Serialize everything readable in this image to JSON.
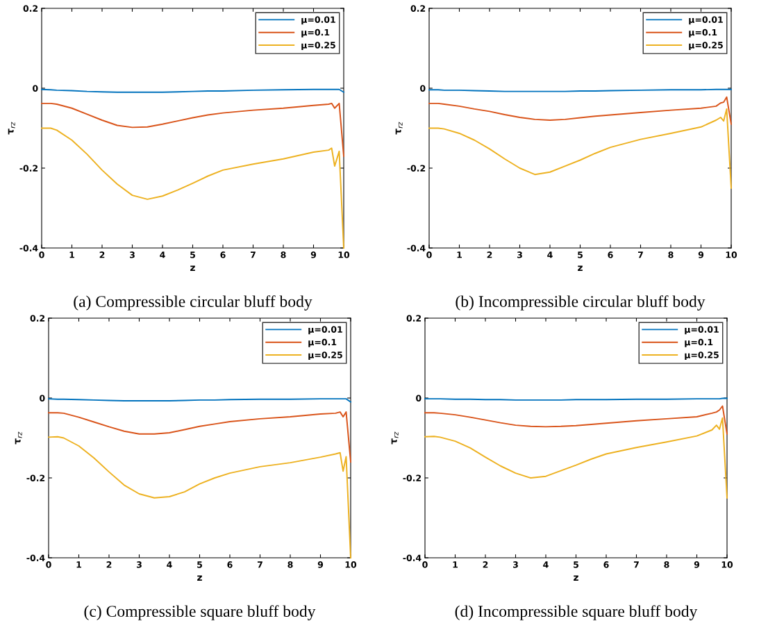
{
  "chart_data": [
    {
      "type": "line",
      "title": "(a) Compressible circular bluff body",
      "xlabel": "z",
      "ylabel": "τ$_{rz}$",
      "legend": "top right",
      "grid": false,
      "x": [
        0,
        0.3,
        0.5,
        1,
        1.5,
        2,
        2.5,
        3,
        3.5,
        4,
        4.5,
        5,
        5.5,
        6,
        7,
        8,
        9,
        9.5,
        9.6,
        9.7,
        9.85,
        10
      ],
      "xlim": [
        0,
        10
      ],
      "xticks": [
        0,
        1,
        2,
        3,
        4,
        5,
        6,
        7,
        8,
        9,
        10
      ],
      "ylim": [
        -0.4,
        0.2
      ],
      "yticks": [
        -0.4,
        -0.2,
        0,
        0.2
      ],
      "series": [
        {
          "name": "μ=0.01",
          "color": "#0072bd",
          "values": [
            -0.003,
            -0.004,
            -0.005,
            -0.006,
            -0.008,
            -0.009,
            -0.01,
            -0.01,
            -0.01,
            -0.01,
            -0.009,
            -0.008,
            -0.007,
            -0.007,
            -0.005,
            -0.004,
            -0.003,
            -0.003,
            -0.003,
            -0.003,
            -0.003,
            -0.01
          ]
        },
        {
          "name": "μ=0.1",
          "color": "#d95319",
          "values": [
            -0.038,
            -0.038,
            -0.04,
            -0.05,
            -0.065,
            -0.08,
            -0.093,
            -0.098,
            -0.097,
            -0.09,
            -0.082,
            -0.074,
            -0.067,
            -0.062,
            -0.055,
            -0.05,
            -0.043,
            -0.04,
            -0.038,
            -0.05,
            -0.038,
            -0.17
          ]
        },
        {
          "name": "μ=0.25",
          "color": "#edb120",
          "values": [
            -0.1,
            -0.1,
            -0.105,
            -0.13,
            -0.165,
            -0.205,
            -0.24,
            -0.268,
            -0.278,
            -0.27,
            -0.255,
            -0.238,
            -0.22,
            -0.205,
            -0.19,
            -0.177,
            -0.16,
            -0.155,
            -0.15,
            -0.195,
            -0.158,
            -0.4
          ]
        }
      ]
    },
    {
      "type": "line",
      "title": "(b) Incompressible circular bluff body",
      "xlabel": "z",
      "ylabel": "τ$_{rz}$",
      "legend": "top right",
      "grid": false,
      "x": [
        0,
        0.3,
        0.5,
        1,
        1.5,
        2,
        2.5,
        3,
        3.5,
        4,
        4.5,
        5,
        5.5,
        6,
        7,
        8,
        9,
        9.5,
        9.65,
        9.75,
        9.85,
        10
      ],
      "xlim": [
        0,
        10
      ],
      "xticks": [
        0,
        1,
        2,
        3,
        4,
        5,
        6,
        7,
        8,
        9,
        10
      ],
      "ylim": [
        -0.4,
        0.2
      ],
      "yticks": [
        -0.4,
        -0.2,
        0,
        0.2
      ],
      "series": [
        {
          "name": "μ=0.01",
          "color": "#0072bd",
          "values": [
            -0.004,
            -0.004,
            -0.005,
            -0.005,
            -0.006,
            -0.007,
            -0.008,
            -0.008,
            -0.008,
            -0.008,
            -0.008,
            -0.007,
            -0.007,
            -0.006,
            -0.005,
            -0.004,
            -0.004,
            -0.003,
            -0.003,
            -0.003,
            -0.003,
            -0.003
          ]
        },
        {
          "name": "μ=0.1",
          "color": "#d95319",
          "values": [
            -0.038,
            -0.038,
            -0.04,
            -0.045,
            -0.052,
            -0.058,
            -0.066,
            -0.073,
            -0.078,
            -0.08,
            -0.078,
            -0.074,
            -0.07,
            -0.067,
            -0.061,
            -0.055,
            -0.05,
            -0.045,
            -0.037,
            -0.035,
            -0.022,
            -0.09
          ]
        },
        {
          "name": "μ=0.25",
          "color": "#edb120",
          "values": [
            -0.1,
            -0.1,
            -0.102,
            -0.113,
            -0.13,
            -0.152,
            -0.177,
            -0.2,
            -0.216,
            -0.21,
            -0.195,
            -0.18,
            -0.163,
            -0.148,
            -0.128,
            -0.113,
            -0.097,
            -0.08,
            -0.073,
            -0.082,
            -0.052,
            -0.25
          ]
        }
      ]
    },
    {
      "type": "line",
      "title": "(c) Compressible square bluff body",
      "xlabel": "z",
      "ylabel": "τ$_{rz}$",
      "legend": "top right",
      "grid": false,
      "x": [
        0,
        0.3,
        0.5,
        1,
        1.5,
        2,
        2.5,
        3,
        3.5,
        4,
        4.5,
        5,
        5.5,
        6,
        7,
        8,
        9,
        9.5,
        9.65,
        9.75,
        9.85,
        10
      ],
      "xlim": [
        0,
        10
      ],
      "xticks": [
        0,
        1,
        2,
        3,
        4,
        5,
        6,
        7,
        8,
        9,
        10
      ],
      "ylim": [
        -0.4,
        0.2
      ],
      "yticks": [
        -0.4,
        -0.2,
        0,
        0.2
      ],
      "series": [
        {
          "name": "μ=0.01",
          "color": "#0072bd",
          "values": [
            -0.002,
            -0.003,
            -0.003,
            -0.004,
            -0.005,
            -0.006,
            -0.007,
            -0.007,
            -0.007,
            -0.007,
            -0.006,
            -0.005,
            -0.005,
            -0.004,
            -0.003,
            -0.003,
            -0.002,
            -0.002,
            -0.002,
            -0.002,
            -0.002,
            -0.01
          ]
        },
        {
          "name": "μ=0.1",
          "color": "#d95319",
          "values": [
            -0.037,
            -0.037,
            -0.038,
            -0.048,
            -0.06,
            -0.072,
            -0.083,
            -0.09,
            -0.09,
            -0.087,
            -0.079,
            -0.071,
            -0.065,
            -0.059,
            -0.052,
            -0.047,
            -0.04,
            -0.038,
            -0.035,
            -0.047,
            -0.035,
            -0.16
          ]
        },
        {
          "name": "μ=0.25",
          "color": "#edb120",
          "values": [
            -0.098,
            -0.097,
            -0.1,
            -0.12,
            -0.15,
            -0.185,
            -0.218,
            -0.24,
            -0.25,
            -0.247,
            -0.235,
            -0.215,
            -0.2,
            -0.188,
            -0.172,
            -0.162,
            -0.148,
            -0.14,
            -0.137,
            -0.183,
            -0.147,
            -0.4
          ]
        }
      ]
    },
    {
      "type": "line",
      "title": "(d) Incompressible square bluff body",
      "xlabel": "z",
      "ylabel": "τ$_{rz}$",
      "legend": "top right",
      "grid": false,
      "x": [
        0,
        0.3,
        0.5,
        1,
        1.5,
        2,
        2.5,
        3,
        3.5,
        4,
        4.5,
        5,
        5.5,
        6,
        7,
        8,
        9,
        9.5,
        9.65,
        9.75,
        9.85,
        10
      ],
      "xlim": [
        0,
        10
      ],
      "xticks": [
        0,
        1,
        2,
        3,
        4,
        5,
        6,
        7,
        8,
        9,
        10
      ],
      "ylim": [
        -0.4,
        0.2
      ],
      "yticks": [
        -0.4,
        -0.2,
        0,
        0.2
      ],
      "series": [
        {
          "name": "μ=0.01",
          "color": "#0072bd",
          "values": [
            -0.002,
            -0.002,
            -0.002,
            -0.003,
            -0.003,
            -0.004,
            -0.004,
            -0.005,
            -0.005,
            -0.005,
            -0.005,
            -0.004,
            -0.004,
            -0.004,
            -0.003,
            -0.003,
            -0.002,
            -0.002,
            -0.002,
            -0.002,
            -0.001,
            -0.001
          ]
        },
        {
          "name": "μ=0.1",
          "color": "#d95319",
          "values": [
            -0.037,
            -0.037,
            -0.038,
            -0.042,
            -0.048,
            -0.055,
            -0.062,
            -0.068,
            -0.071,
            -0.072,
            -0.071,
            -0.069,
            -0.066,
            -0.063,
            -0.057,
            -0.052,
            -0.047,
            -0.038,
            -0.035,
            -0.03,
            -0.02,
            -0.09
          ]
        },
        {
          "name": "μ=0.25",
          "color": "#edb120",
          "values": [
            -0.097,
            -0.096,
            -0.098,
            -0.108,
            -0.125,
            -0.148,
            -0.17,
            -0.188,
            -0.2,
            -0.196,
            -0.182,
            -0.168,
            -0.153,
            -0.14,
            -0.124,
            -0.11,
            -0.095,
            -0.08,
            -0.068,
            -0.078,
            -0.05,
            -0.25
          ]
        }
      ]
    }
  ]
}
